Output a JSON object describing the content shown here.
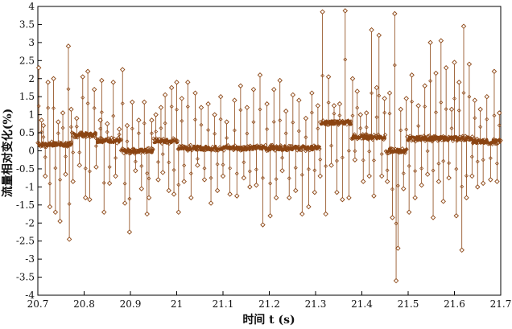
{
  "chart_data": {
    "type": "line",
    "xlabel": "时间 t (s)",
    "ylabel": "流量相对变化(%)",
    "xlim": [
      20.7,
      21.7
    ],
    "ylim": [
      -4,
      4
    ],
    "xticks": [
      "20.7",
      "20.8",
      "20.9",
      "21",
      "21.1",
      "21.2",
      "21.3",
      "21.4",
      "21.5",
      "21.6",
      "21.7"
    ],
    "yticks": [
      "-4",
      "-3.5",
      "-3",
      "-2.5",
      "-2",
      "-1.5",
      "-1",
      "-0.5",
      "0",
      "0.5",
      "1",
      "1.5",
      "2",
      "2.5",
      "3",
      "3.5",
      "4"
    ],
    "grid": false,
    "series_color": "#8B4513",
    "marker": "diamond-open",
    "baseline_segments": [
      {
        "x": [
          20.7,
          20.774
        ],
        "y": 0.18
      },
      {
        "x": [
          20.774,
          20.826
        ],
        "y": 0.45
      },
      {
        "x": [
          20.826,
          20.88
        ],
        "y": 0.28
      },
      {
        "x": [
          20.88,
          20.95
        ],
        "y": 0.0
      },
      {
        "x": [
          20.95,
          21.003
        ],
        "y": 0.27
      },
      {
        "x": [
          21.003,
          21.31
        ],
        "y": 0.08
      },
      {
        "x": [
          21.31,
          21.378
        ],
        "y": 0.78
      },
      {
        "x": [
          21.378,
          21.452
        ],
        "y": 0.38
      },
      {
        "x": [
          21.452,
          21.498
        ],
        "y": 0.0
      },
      {
        "x": [
          21.498,
          21.64
        ],
        "y": 0.34
      },
      {
        "x": [
          21.64,
          21.7
        ],
        "y": 0.26
      }
    ],
    "spikes": [
      {
        "x": 20.702,
        "y": 2.3
      },
      {
        "x": 20.708,
        "y": 0.85
      },
      {
        "x": 20.712,
        "y": 0.7
      },
      {
        "x": 20.716,
        "y": -0.7
      },
      {
        "x": 20.722,
        "y": 1.9
      },
      {
        "x": 20.726,
        "y": -1.55
      },
      {
        "x": 20.734,
        "y": 2.0
      },
      {
        "x": 20.738,
        "y": -1.7
      },
      {
        "x": 20.744,
        "y": 0.8
      },
      {
        "x": 20.748,
        "y": -1.95
      },
      {
        "x": 20.754,
        "y": 1.05
      },
      {
        "x": 20.76,
        "y": -0.65
      },
      {
        "x": 20.766,
        "y": 2.9
      },
      {
        "x": 20.768,
        "y": -2.45
      },
      {
        "x": 20.772,
        "y": 1.15
      },
      {
        "x": 20.776,
        "y": -0.85
      },
      {
        "x": 20.784,
        "y": 0.9
      },
      {
        "x": 20.79,
        "y": -0.4
      },
      {
        "x": 20.797,
        "y": 2.05
      },
      {
        "x": 20.803,
        "y": -1.3
      },
      {
        "x": 20.808,
        "y": 2.2
      },
      {
        "x": 20.812,
        "y": -1.35
      },
      {
        "x": 20.822,
        "y": 1.7
      },
      {
        "x": 20.826,
        "y": -0.45
      },
      {
        "x": 20.835,
        "y": 0.85
      },
      {
        "x": 20.838,
        "y": 1.95
      },
      {
        "x": 20.843,
        "y": -1.7
      },
      {
        "x": 20.85,
        "y": 0.75
      },
      {
        "x": 20.855,
        "y": -0.9
      },
      {
        "x": 20.863,
        "y": 1.9
      },
      {
        "x": 20.868,
        "y": -0.7
      },
      {
        "x": 20.876,
        "y": 0.6
      },
      {
        "x": 20.883,
        "y": 2.25
      },
      {
        "x": 20.888,
        "y": -1.45
      },
      {
        "x": 20.893,
        "y": 0.7
      },
      {
        "x": 20.898,
        "y": -2.25
      },
      {
        "x": 20.904,
        "y": 1.35
      },
      {
        "x": 20.911,
        "y": -0.55
      },
      {
        "x": 20.918,
        "y": 0.85
      },
      {
        "x": 20.924,
        "y": -1.05
      },
      {
        "x": 20.93,
        "y": 1.35
      },
      {
        "x": 20.936,
        "y": -1.75
      },
      {
        "x": 20.94,
        "y": -1.3
      },
      {
        "x": 20.946,
        "y": 0.85
      },
      {
        "x": 20.955,
        "y": 1.0
      },
      {
        "x": 20.96,
        "y": -0.8
      },
      {
        "x": 20.966,
        "y": 1.2
      },
      {
        "x": 20.97,
        "y": -0.6
      },
      {
        "x": 20.975,
        "y": 1.55
      },
      {
        "x": 20.983,
        "y": -1.1
      },
      {
        "x": 20.989,
        "y": 1.75
      },
      {
        "x": 20.994,
        "y": -1.2
      },
      {
        "x": 21.0,
        "y": 1.9
      },
      {
        "x": 21.004,
        "y": -1.7
      },
      {
        "x": 21.011,
        "y": 1.45
      },
      {
        "x": 21.016,
        "y": -0.85
      },
      {
        "x": 21.024,
        "y": 1.9
      },
      {
        "x": 21.031,
        "y": -1.3
      },
      {
        "x": 21.04,
        "y": 1.6
      },
      {
        "x": 21.045,
        "y": -0.4
      },
      {
        "x": 21.053,
        "y": 1.2
      },
      {
        "x": 21.06,
        "y": -0.8
      },
      {
        "x": 21.068,
        "y": 1.3
      },
      {
        "x": 21.074,
        "y": -1.45
      },
      {
        "x": 21.082,
        "y": 1.0
      },
      {
        "x": 21.088,
        "y": -1.1
      },
      {
        "x": 21.095,
        "y": 1.5
      },
      {
        "x": 21.1,
        "y": -0.7
      },
      {
        "x": 21.108,
        "y": 0.8
      },
      {
        "x": 21.115,
        "y": -1.2
      },
      {
        "x": 21.125,
        "y": 1.4
      },
      {
        "x": 21.13,
        "y": -1.25
      },
      {
        "x": 21.138,
        "y": 1.8
      },
      {
        "x": 21.145,
        "y": -0.75
      },
      {
        "x": 21.152,
        "y": 1.2
      },
      {
        "x": 21.158,
        "y": -1.0
      },
      {
        "x": 21.166,
        "y": 1.7
      },
      {
        "x": 21.172,
        "y": -0.95
      },
      {
        "x": 21.18,
        "y": 2.1
      },
      {
        "x": 21.186,
        "y": -2.05
      },
      {
        "x": 21.195,
        "y": 1.3
      },
      {
        "x": 21.202,
        "y": -1.8
      },
      {
        "x": 21.21,
        "y": 1.7
      },
      {
        "x": 21.215,
        "y": -1.3
      },
      {
        "x": 21.223,
        "y": 1.95
      },
      {
        "x": 21.228,
        "y": -0.55
      },
      {
        "x": 21.236,
        "y": 1.1
      },
      {
        "x": 21.243,
        "y": -1.3
      },
      {
        "x": 21.251,
        "y": 1.55
      },
      {
        "x": 21.257,
        "y": -1.1
      },
      {
        "x": 21.264,
        "y": 1.4
      },
      {
        "x": 21.271,
        "y": -1.75
      },
      {
        "x": 21.279,
        "y": 0.9
      },
      {
        "x": 21.285,
        "y": -1.55
      },
      {
        "x": 21.292,
        "y": 1.6
      },
      {
        "x": 21.298,
        "y": -1.15
      },
      {
        "x": 21.305,
        "y": 1.25
      },
      {
        "x": 21.31,
        "y": -0.7
      },
      {
        "x": 21.315,
        "y": 3.85
      },
      {
        "x": 21.322,
        "y": -1.75
      },
      {
        "x": 21.328,
        "y": 2.05
      },
      {
        "x": 21.334,
        "y": -0.4
      },
      {
        "x": 21.34,
        "y": 1.25
      },
      {
        "x": 21.346,
        "y": -1.15
      },
      {
        "x": 21.352,
        "y": 1.3
      },
      {
        "x": 21.358,
        "y": -1.35
      },
      {
        "x": 21.364,
        "y": 3.88
      },
      {
        "x": 21.372,
        "y": -1.3
      },
      {
        "x": 21.38,
        "y": 2.0
      },
      {
        "x": 21.385,
        "y": -0.25
      },
      {
        "x": 21.39,
        "y": 1.65
      },
      {
        "x": 21.397,
        "y": 1.0
      },
      {
        "x": 21.403,
        "y": -0.85
      },
      {
        "x": 21.41,
        "y": 1.05
      },
      {
        "x": 21.416,
        "y": -0.7
      },
      {
        "x": 21.421,
        "y": 3.35
      },
      {
        "x": 21.426,
        "y": -1.25
      },
      {
        "x": 21.432,
        "y": 1.75
      },
      {
        "x": 21.437,
        "y": 3.2
      },
      {
        "x": 21.443,
        "y": -0.7
      },
      {
        "x": 21.449,
        "y": 1.45
      },
      {
        "x": 21.455,
        "y": -0.85
      },
      {
        "x": 21.46,
        "y": 1.6
      },
      {
        "x": 21.466,
        "y": -1.85
      },
      {
        "x": 21.471,
        "y": 3.8
      },
      {
        "x": 21.474,
        "y": -3.6
      },
      {
        "x": 21.478,
        "y": -2.7
      },
      {
        "x": 21.484,
        "y": 1.15
      },
      {
        "x": 21.49,
        "y": -1.05
      },
      {
        "x": 21.496,
        "y": 1.45
      },
      {
        "x": 21.502,
        "y": -1.7
      },
      {
        "x": 21.508,
        "y": 2.1
      },
      {
        "x": 21.515,
        "y": -1.3
      },
      {
        "x": 21.522,
        "y": 1.25
      },
      {
        "x": 21.529,
        "y": -0.95
      },
      {
        "x": 21.536,
        "y": 1.8
      },
      {
        "x": 21.542,
        "y": -0.65
      },
      {
        "x": 21.548,
        "y": 3.0
      },
      {
        "x": 21.554,
        "y": -1.85
      },
      {
        "x": 21.56,
        "y": 2.15
      },
      {
        "x": 21.566,
        "y": -0.85
      },
      {
        "x": 21.571,
        "y": 3.05
      },
      {
        "x": 21.576,
        "y": -1.4
      },
      {
        "x": 21.582,
        "y": 2.3
      },
      {
        "x": 21.588,
        "y": -0.75
      },
      {
        "x": 21.594,
        "y": 1.15
      },
      {
        "x": 21.6,
        "y": 2.45
      },
      {
        "x": 21.604,
        "y": -1.8
      },
      {
        "x": 21.61,
        "y": 1.9
      },
      {
        "x": 21.616,
        "y": -2.75
      },
      {
        "x": 21.62,
        "y": 3.45
      },
      {
        "x": 21.626,
        "y": -1.3
      },
      {
        "x": 21.632,
        "y": 2.4
      },
      {
        "x": 21.638,
        "y": -0.7
      },
      {
        "x": 21.644,
        "y": 1.4
      },
      {
        "x": 21.65,
        "y": -1.0
      },
      {
        "x": 21.656,
        "y": 1.15
      },
      {
        "x": 21.662,
        "y": -0.9
      },
      {
        "x": 21.67,
        "y": 1.5
      },
      {
        "x": 21.678,
        "y": -0.8
      },
      {
        "x": 21.686,
        "y": 2.2
      },
      {
        "x": 21.692,
        "y": -0.85
      },
      {
        "x": 21.697,
        "y": 1.05
      }
    ]
  }
}
